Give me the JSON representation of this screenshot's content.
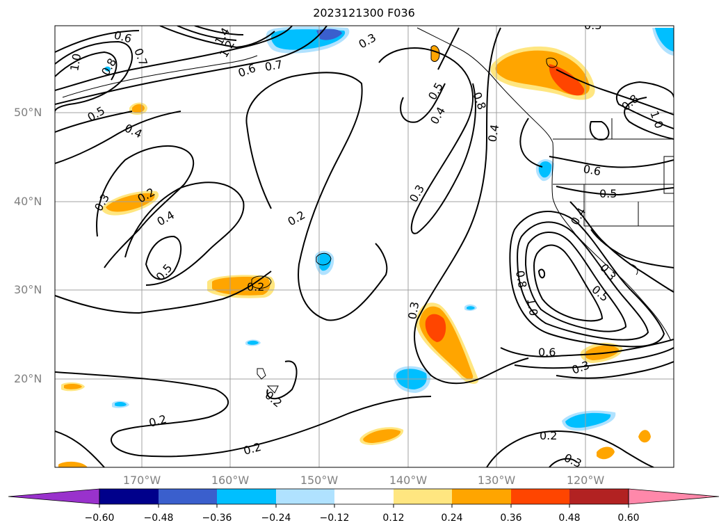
{
  "title": "2023121300 F036",
  "lat_labels": [
    "50°N",
    "40°N",
    "30°N",
    "20°N"
  ],
  "lon_labels": [
    "170°W",
    "160°W",
    "150°W",
    "140°W",
    "130°W",
    "120°W"
  ],
  "colorbar": {
    "ticks": [
      "−0.60",
      "−0.48",
      "−0.36",
      "−0.24",
      "−0.12",
      "0.12",
      "0.24",
      "0.36",
      "0.48",
      "0.60"
    ],
    "colors": [
      "#9932cc",
      "#00008b",
      "#3a5fcd",
      "#00bfff",
      "#b0e2ff",
      "#ffffff",
      "#ffe680",
      "#ffa500",
      "#ff4500",
      "#b22222",
      "#ff88aa"
    ]
  },
  "contour_labels": [
    "0.6",
    "1.0",
    "0.8",
    "0.7",
    "0.5",
    "0.4",
    "0.3",
    "0.2",
    "1.4",
    "1.2",
    "0.6",
    "0.7",
    "0.3",
    "0.5",
    "0.8",
    "0.4",
    "0.4",
    "0.3",
    "0.6",
    "0.5",
    "0.4",
    "0.8",
    "1.0",
    "0.3",
    "0.2",
    "0.4",
    "0.5",
    "0.3",
    "0.2",
    "0.2",
    "0.8",
    "1.0",
    "0.3",
    "0.5",
    "0.6",
    "0.3",
    "0.2",
    "0.2",
    "0.2",
    "0.3"
  ]
}
